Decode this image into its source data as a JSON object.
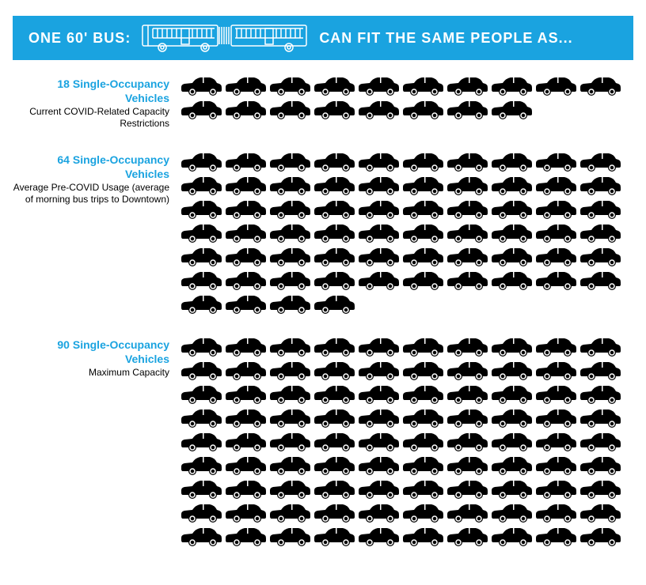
{
  "banner": {
    "left_text": "ONE 60' BUS:",
    "right_text": "CAN FIT THE SAME PEOPLE AS...",
    "bg_color": "#1aa3e0",
    "text_color": "#ffffff",
    "bus_outline_color": "#ffffff",
    "fontsize": 18
  },
  "sections": [
    {
      "title": "18 Single-Occupancy Vehicles",
      "subtitle": "Current COVID-Related Capacity Restrictions",
      "car_count": 18,
      "title_color": "#1aa3e0",
      "subtitle_color": "#000000",
      "car_color": "#000000"
    },
    {
      "title": "64 Single-Occupancy Vehicles",
      "subtitle": "Average Pre-COVID Usage (average of morning bus trips to Downtown)",
      "car_count": 64,
      "title_color": "#1aa3e0",
      "subtitle_color": "#000000",
      "car_color": "#000000"
    },
    {
      "title": "90 Single-Occupancy Vehicles",
      "subtitle": "Maximum Capacity",
      "car_count": 90,
      "title_color": "#1aa3e0",
      "subtitle_color": "#000000",
      "car_color": "#000000"
    }
  ],
  "layout": {
    "cars_per_row": 10,
    "car_width": 53,
    "car_height": 26,
    "title_fontsize": 14,
    "subtitle_fontsize": 12,
    "label_line_height": 1.25
  }
}
